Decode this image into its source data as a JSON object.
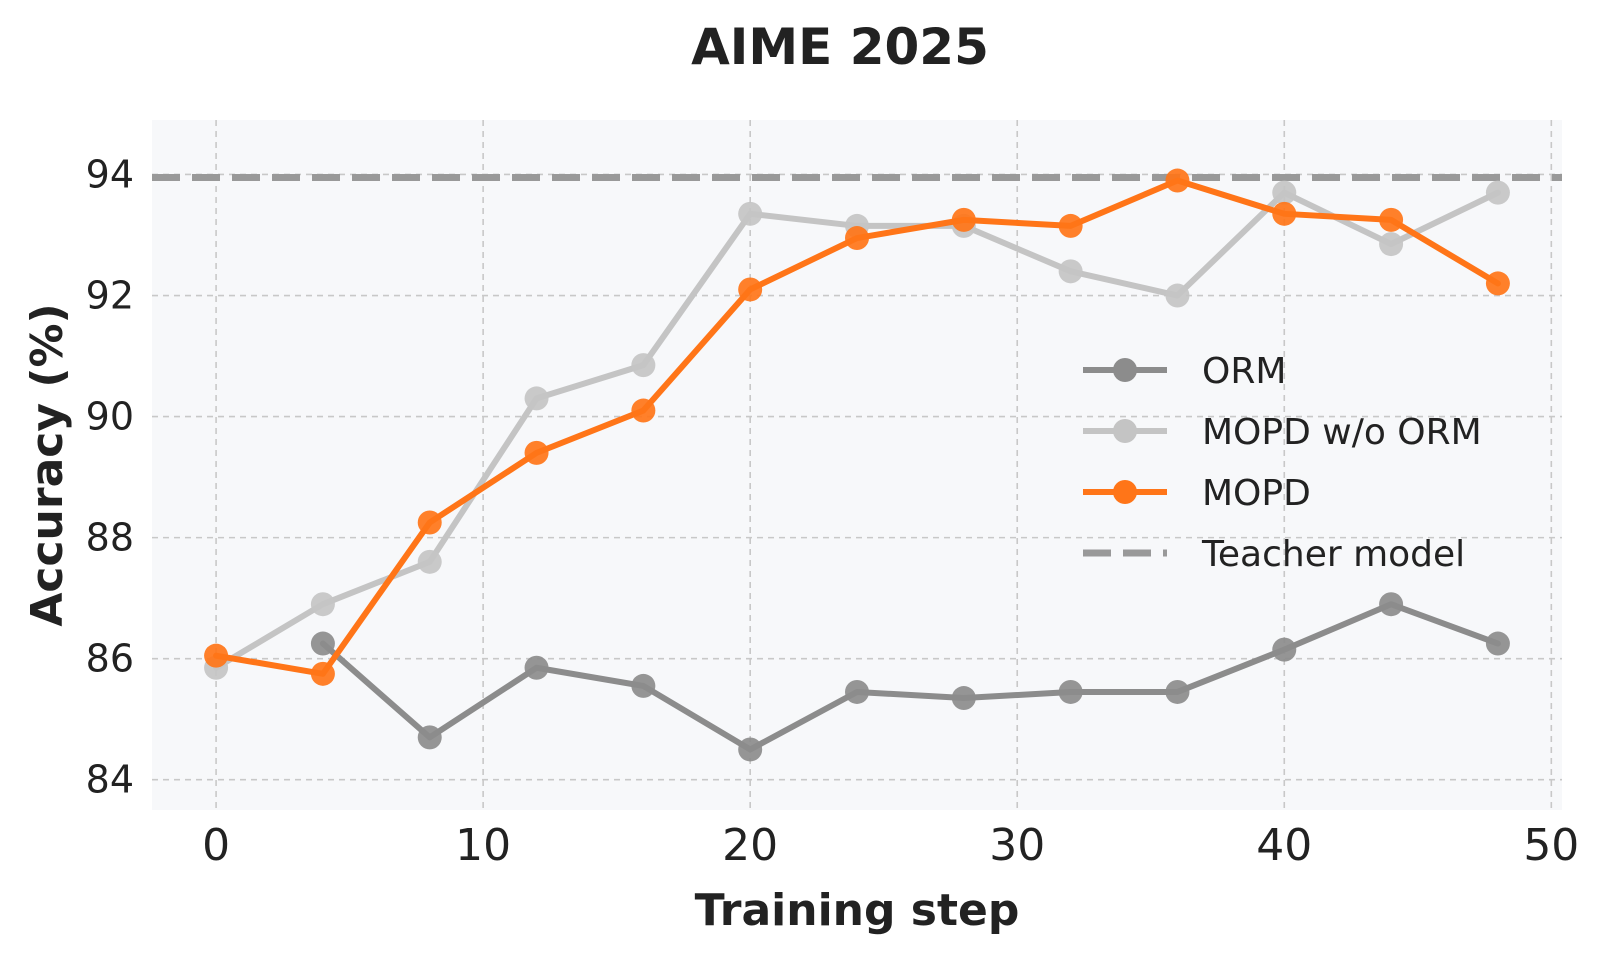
{
  "chart_data": {
    "type": "line",
    "title": "AIME 2025",
    "xlabel": "Training step",
    "ylabel": "Accuracy (%)",
    "xlim": [
      -2.4,
      50.4
    ],
    "ylim": [
      83.5,
      94.9
    ],
    "xticks": [
      0,
      10,
      20,
      30,
      40,
      50
    ],
    "yticks": [
      84,
      86,
      88,
      90,
      92,
      94
    ],
    "grid": true,
    "legend_position": "center-right",
    "series": [
      {
        "name": "ORM",
        "color": "#8c8c8c",
        "x": [
          4,
          8,
          12,
          16,
          20,
          24,
          28,
          32,
          36,
          40,
          44,
          48
        ],
        "y": [
          86.25,
          84.7,
          85.85,
          85.55,
          84.5,
          85.45,
          85.35,
          85.45,
          85.45,
          86.15,
          86.9,
          86.25
        ]
      },
      {
        "name": "MOPD w/o ORM",
        "color": "#c4c4c4",
        "x": [
          0,
          4,
          8,
          12,
          16,
          20,
          24,
          28,
          32,
          36,
          40,
          44,
          48
        ],
        "y": [
          85.85,
          86.9,
          87.6,
          90.3,
          90.85,
          93.35,
          93.15,
          93.15,
          92.4,
          92.0,
          93.7,
          92.85,
          93.7
        ]
      },
      {
        "name": "MOPD",
        "color": "#ff7518",
        "x": [
          0,
          4,
          8,
          12,
          16,
          20,
          24,
          28,
          32,
          36,
          40,
          44,
          48
        ],
        "y": [
          86.05,
          85.75,
          88.25,
          89.4,
          90.1,
          92.1,
          92.95,
          93.25,
          93.15,
          93.9,
          93.35,
          93.25,
          92.2
        ]
      }
    ],
    "reference_line": {
      "name": "Teacher model",
      "color": "#999999",
      "style": "dashed",
      "y": 93.95
    }
  }
}
